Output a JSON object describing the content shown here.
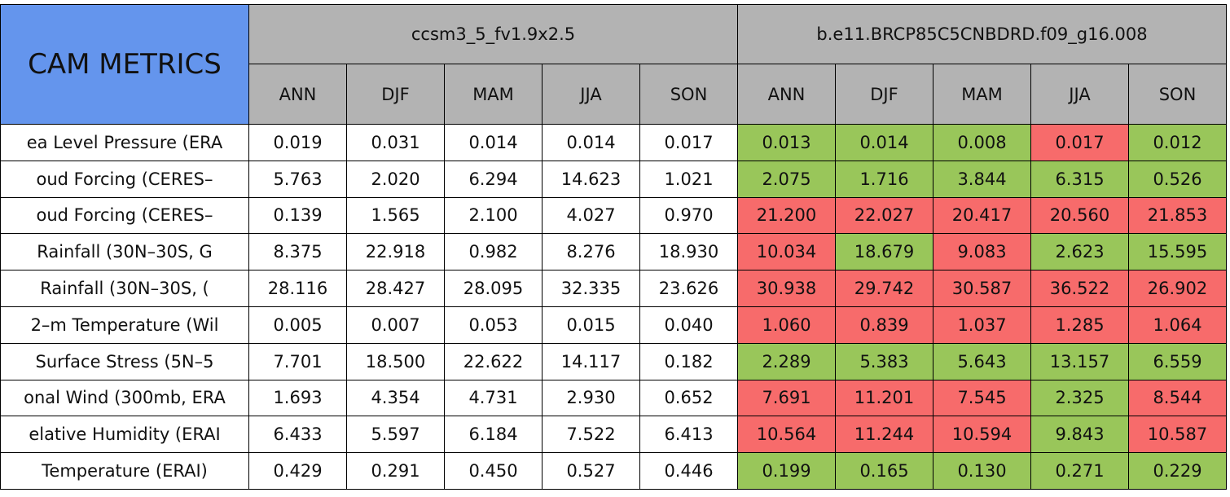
{
  "table": {
    "title": "CAM METRICS",
    "groups": [
      {
        "title": "ccsm3_5_fv1.9x2.5",
        "columns": [
          "ANN",
          "DJF",
          "MAM",
          "JJA",
          "SON"
        ]
      },
      {
        "title": "b.e11.BRCP85C5CNBDRD.f09_g16.008",
        "columns": [
          "ANN",
          "DJF",
          "MAM",
          "JJA",
          "SON"
        ]
      }
    ],
    "palette": {
      "white": "#ffffff",
      "green": "#99c65a",
      "red": "#f76b6b"
    },
    "rows": [
      {
        "label": "ea Level Pressure (ERA",
        "values": [
          "0.019",
          "0.031",
          "0.014",
          "0.014",
          "0.017",
          "0.013",
          "0.014",
          "0.008",
          "0.017",
          "0.012"
        ],
        "colors": [
          "white",
          "white",
          "white",
          "white",
          "white",
          "green",
          "green",
          "green",
          "red",
          "green"
        ]
      },
      {
        "label": "oud Forcing (CERES–",
        "values": [
          "5.763",
          "2.020",
          "6.294",
          "14.623",
          "1.021",
          "2.075",
          "1.716",
          "3.844",
          "6.315",
          "0.526"
        ],
        "colors": [
          "white",
          "white",
          "white",
          "white",
          "white",
          "green",
          "green",
          "green",
          "green",
          "green"
        ]
      },
      {
        "label": "oud Forcing (CERES–",
        "values": [
          "0.139",
          "1.565",
          "2.100",
          "4.027",
          "0.970",
          "21.200",
          "22.027",
          "20.417",
          "20.560",
          "21.853"
        ],
        "colors": [
          "white",
          "white",
          "white",
          "white",
          "white",
          "red",
          "red",
          "red",
          "red",
          "red"
        ]
      },
      {
        "label": "Rainfall (30N–30S, G",
        "values": [
          "8.375",
          "22.918",
          "0.982",
          "8.276",
          "18.930",
          "10.034",
          "18.679",
          "9.083",
          "2.623",
          "15.595"
        ],
        "colors": [
          "white",
          "white",
          "white",
          "white",
          "white",
          "red",
          "green",
          "red",
          "green",
          "green"
        ]
      },
      {
        "label": "Rainfall (30N–30S, (",
        "values": [
          "28.116",
          "28.427",
          "28.095",
          "32.335",
          "23.626",
          "30.938",
          "29.742",
          "30.587",
          "36.522",
          "26.902"
        ],
        "colors": [
          "white",
          "white",
          "white",
          "white",
          "white",
          "red",
          "red",
          "red",
          "red",
          "red"
        ]
      },
      {
        "label": "2–m Temperature (Wil",
        "values": [
          "0.005",
          "0.007",
          "0.053",
          "0.015",
          "0.040",
          "1.060",
          "0.839",
          "1.037",
          "1.285",
          "1.064"
        ],
        "colors": [
          "white",
          "white",
          "white",
          "white",
          "white",
          "red",
          "red",
          "red",
          "red",
          "red"
        ]
      },
      {
        "label": "Surface Stress (5N–5",
        "values": [
          "7.701",
          "18.500",
          "22.622",
          "14.117",
          "0.182",
          "2.289",
          "5.383",
          "5.643",
          "13.157",
          "6.559"
        ],
        "colors": [
          "white",
          "white",
          "white",
          "white",
          "white",
          "green",
          "green",
          "green",
          "green",
          "green"
        ]
      },
      {
        "label": "onal Wind (300mb, ERA",
        "values": [
          "1.693",
          "4.354",
          "4.731",
          "2.930",
          "0.652",
          "7.691",
          "11.201",
          "7.545",
          "2.325",
          "8.544"
        ],
        "colors": [
          "white",
          "white",
          "white",
          "white",
          "white",
          "red",
          "red",
          "red",
          "green",
          "red"
        ]
      },
      {
        "label": "elative Humidity (ERAI",
        "values": [
          "6.433",
          "5.597",
          "6.184",
          "7.522",
          "6.413",
          "10.564",
          "11.244",
          "10.594",
          "9.843",
          "10.587"
        ],
        "colors": [
          "white",
          "white",
          "white",
          "white",
          "white",
          "red",
          "red",
          "red",
          "green",
          "red"
        ]
      },
      {
        "label": "Temperature (ERAI)",
        "values": [
          "0.429",
          "0.291",
          "0.450",
          "0.527",
          "0.446",
          "0.199",
          "0.165",
          "0.130",
          "0.271",
          "0.229"
        ],
        "colors": [
          "white",
          "white",
          "white",
          "white",
          "white",
          "green",
          "green",
          "green",
          "green",
          "green"
        ]
      }
    ]
  }
}
